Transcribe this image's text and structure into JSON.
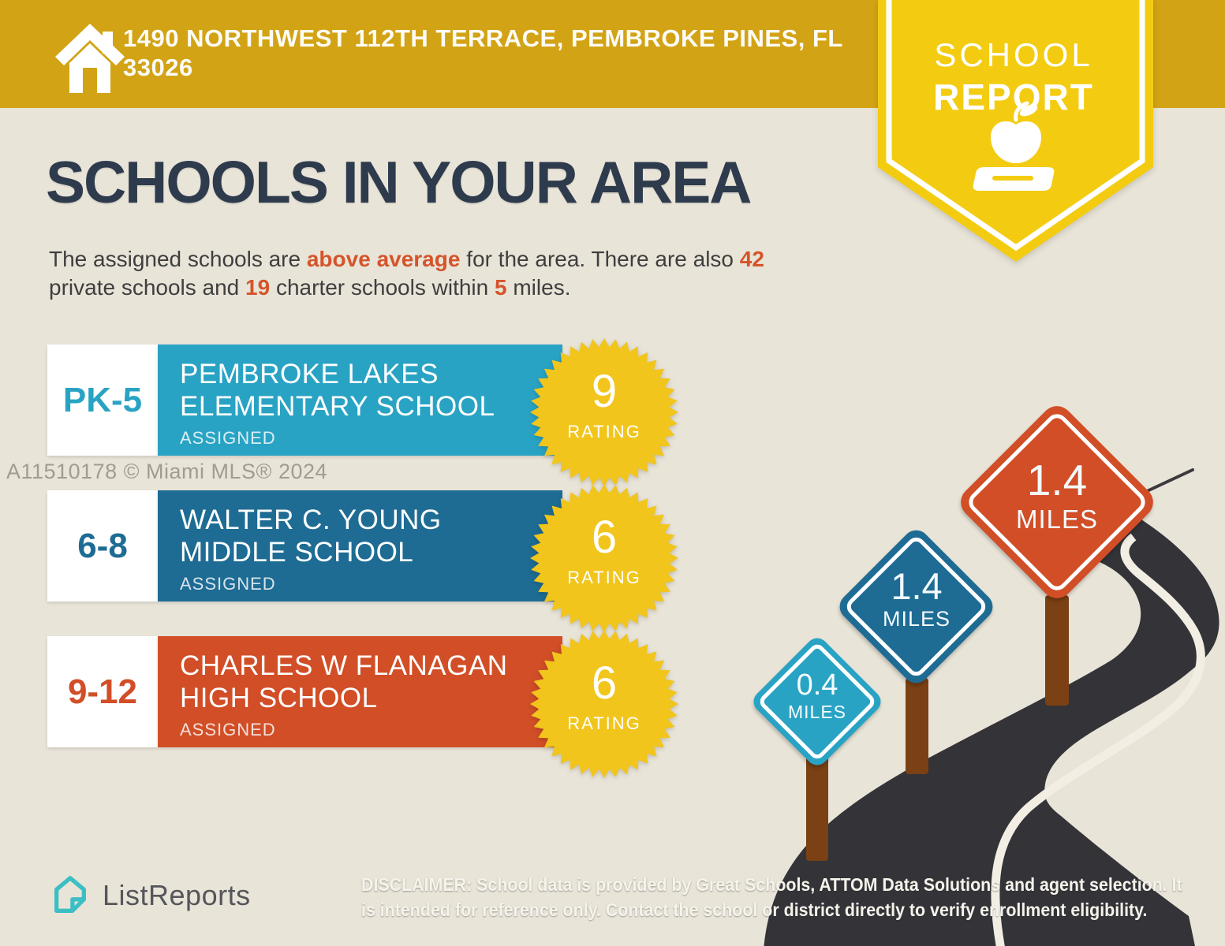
{
  "banner": {
    "address_line1": "1490 NORTHWEST 112TH TERRACE, PEMBROKE PINES, FL",
    "address_line2": "33026"
  },
  "ribbon": {
    "title_line1": "SCHOOL",
    "title_line2": "REPORT"
  },
  "headline": "SCHOOLS IN YOUR AREA",
  "intro": {
    "seg1": "The assigned schools are ",
    "seg2": "above average",
    "seg3": " for the area. There are also ",
    "seg4": "42",
    "seg5": " private schools and ",
    "seg6": "19",
    "seg7": " charter schools within ",
    "seg8": "5",
    "seg9": " miles."
  },
  "schools": [
    {
      "grades": "PK-5",
      "name_line1": "PEMBROKE LAKES",
      "name_line2": "ELEMENTARY SCHOOL",
      "tag": "ASSIGNED",
      "rating": "9",
      "rating_label": "RATING",
      "color": "#29A3C4"
    },
    {
      "grades": "6-8",
      "name_line1": "WALTER C. YOUNG",
      "name_line2": "MIDDLE SCHOOL",
      "tag": "ASSIGNED",
      "rating": "6",
      "rating_label": "RATING",
      "color": "#1E6C94"
    },
    {
      "grades": "9-12",
      "name_line1": "CHARLES W FLANAGAN",
      "name_line2": "HIGH SCHOOL",
      "tag": "ASSIGNED",
      "rating": "6",
      "rating_label": "RATING",
      "color": "#D14E27"
    }
  ],
  "signs": [
    {
      "distance": "0.4",
      "unit": "MILES",
      "color": "#29A3C4"
    },
    {
      "distance": "1.4",
      "unit": "MILES",
      "color": "#1E6C94"
    },
    {
      "distance": "1.4",
      "unit": "MILES",
      "color": "#D14E27"
    }
  ],
  "watermark": "A11510178 © Miami MLS® 2024",
  "footer": {
    "brand": "ListReports",
    "disclaimer_label": "DISCLAIMER:",
    "disclaimer_text": " School data is provided by Great Schools, ATTOM Data Solutions and agent selection. It is intended for reference only. Contact the school or district directly to verify enrollment eligibility."
  },
  "colors": {
    "banner_gold": "#D2A315",
    "ribbon_yellow": "#F3CC12",
    "badge_yellow": "#F1C51B",
    "headline_navy": "#2E3B4D",
    "accent_orange": "#D5542B",
    "elementary_teal": "#29A3C4",
    "middle_blue": "#1E6C94",
    "high_red": "#D14E27",
    "road_dark": "#333338",
    "road_line": "#F2EEE4",
    "post_brown": "#7B4013",
    "background_beige": "#E9E4D8",
    "brand_teal": "#3CBFC4"
  }
}
